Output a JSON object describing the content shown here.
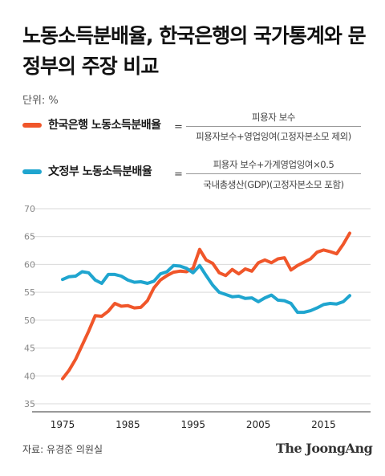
{
  "title": "노동소득분배율, 한국은행의 국가통계와 문정부의 주장 비교",
  "unit_label": "단위: %",
  "legend": [
    {
      "name": "한국은행 노동소득분배율",
      "color": "#f0562a",
      "eq": "=",
      "numerator": "피용자 보수",
      "denominator": "피용자보수+영업잉여(고정자본소모 제외)"
    },
    {
      "name": "文정부 노동소득분배율",
      "color": "#1fa5cf",
      "eq": "=",
      "numerator": "피용자 보수+가계영업잉여×0.5",
      "denominator": "국내총생산(GDP)(고정자본소모 포함)"
    }
  ],
  "source": "자료: 유경준 의원실",
  "logo": "The JoongAng",
  "chart_data": {
    "type": "line",
    "xlabel": "",
    "ylabel": "",
    "xlim": [
      1975,
      2019
    ],
    "ylim": [
      35,
      70
    ],
    "y_ticks": [
      35,
      40,
      45,
      50,
      55,
      60,
      65,
      70
    ],
    "x_ticks": [
      1975,
      1985,
      1995,
      2005,
      2015
    ],
    "grid": "horizontal",
    "x": [
      1975,
      1976,
      1977,
      1978,
      1979,
      1980,
      1981,
      1982,
      1983,
      1984,
      1985,
      1986,
      1987,
      1988,
      1989,
      1990,
      1991,
      1992,
      1993,
      1994,
      1995,
      1996,
      1997,
      1998,
      1999,
      2000,
      2001,
      2002,
      2003,
      2004,
      2005,
      2006,
      2007,
      2008,
      2009,
      2010,
      2011,
      2012,
      2013,
      2014,
      2015,
      2016,
      2017,
      2018,
      2019
    ],
    "series": [
      {
        "name": "한국은행 노동소득분배율",
        "color": "#f0562a",
        "values": [
          39.5,
          41.0,
          43.0,
          45.5,
          48.0,
          50.8,
          50.7,
          51.6,
          53.0,
          52.5,
          52.6,
          52.2,
          52.3,
          53.5,
          55.8,
          57.2,
          58.0,
          58.6,
          58.8,
          58.7,
          59.3,
          62.7,
          60.8,
          60.2,
          58.5,
          58.0,
          59.1,
          58.3,
          59.2,
          58.8,
          60.3,
          60.8,
          60.3,
          61.0,
          61.2,
          59.0,
          59.8,
          60.4,
          61.0,
          62.2,
          62.6,
          62.3,
          61.9,
          63.6,
          65.6
        ]
      },
      {
        "name": "文정부 노동소득분배율",
        "color": "#1fa5cf",
        "values": [
          57.3,
          57.8,
          57.9,
          58.7,
          58.5,
          57.2,
          56.6,
          58.2,
          58.2,
          57.9,
          57.2,
          56.8,
          56.9,
          56.6,
          57.0,
          58.3,
          58.7,
          59.8,
          59.7,
          59.3,
          58.5,
          59.8,
          58.0,
          56.3,
          55.0,
          54.6,
          54.2,
          54.3,
          53.9,
          54.0,
          53.3,
          54.0,
          54.5,
          53.6,
          53.5,
          53.0,
          51.4,
          51.4,
          51.7,
          52.2,
          52.8,
          53.0,
          52.9,
          53.3,
          54.4
        ]
      }
    ]
  }
}
